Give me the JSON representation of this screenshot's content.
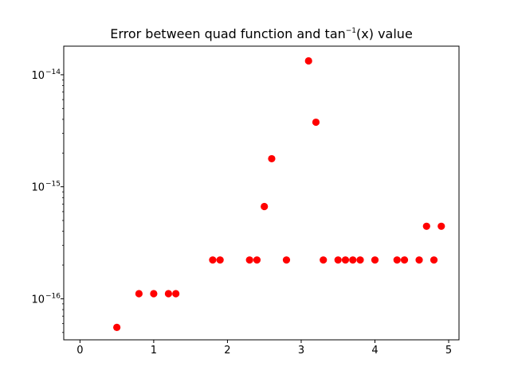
{
  "chart_data": {
    "type": "scatter",
    "title": {
      "main": "Error between quad function and tan",
      "superscript": "−1",
      "suffix": "(x) value"
    },
    "xlabel": "",
    "ylabel": "",
    "xlim": [
      -0.22,
      5.14
    ],
    "ylim": [
      4.3e-17,
      1.8e-14
    ],
    "yscale": "log",
    "grid": false,
    "marker_color": "#ff0000",
    "x_ticks": [
      {
        "value": 0,
        "label": "0"
      },
      {
        "value": 1,
        "label": "1"
      },
      {
        "value": 2,
        "label": "2"
      },
      {
        "value": 3,
        "label": "3"
      },
      {
        "value": 4,
        "label": "4"
      },
      {
        "value": 5,
        "label": "5"
      }
    ],
    "y_ticks": [
      {
        "value": 1e-16,
        "base": "10",
        "exponent": "−16"
      },
      {
        "value": 1e-15,
        "base": "10",
        "exponent": "−15"
      },
      {
        "value": 1e-14,
        "base": "10",
        "exponent": "−14"
      }
    ],
    "points": [
      {
        "x": 0.5,
        "y": 5.55e-17
      },
      {
        "x": 0.8,
        "y": 1.11e-16
      },
      {
        "x": 1.0,
        "y": 1.11e-16
      },
      {
        "x": 1.2,
        "y": 1.11e-16
      },
      {
        "x": 1.3,
        "y": 1.11e-16
      },
      {
        "x": 1.8,
        "y": 2.22e-16
      },
      {
        "x": 1.9,
        "y": 2.22e-16
      },
      {
        "x": 2.3,
        "y": 2.22e-16
      },
      {
        "x": 2.4,
        "y": 2.22e-16
      },
      {
        "x": 2.5,
        "y": 6.66e-16
      },
      {
        "x": 2.6,
        "y": 1.78e-15
      },
      {
        "x": 2.8,
        "y": 2.22e-16
      },
      {
        "x": 3.1,
        "y": 1.33e-14
      },
      {
        "x": 3.2,
        "y": 3.77e-15
      },
      {
        "x": 3.3,
        "y": 2.22e-16
      },
      {
        "x": 3.5,
        "y": 2.22e-16
      },
      {
        "x": 3.6,
        "y": 2.22e-16
      },
      {
        "x": 3.7,
        "y": 2.22e-16
      },
      {
        "x": 3.8,
        "y": 2.22e-16
      },
      {
        "x": 4.0,
        "y": 2.22e-16
      },
      {
        "x": 4.3,
        "y": 2.22e-16
      },
      {
        "x": 4.4,
        "y": 2.22e-16
      },
      {
        "x": 4.6,
        "y": 2.22e-16
      },
      {
        "x": 4.7,
        "y": 4.44e-16
      },
      {
        "x": 4.8,
        "y": 2.22e-16
      },
      {
        "x": 4.9,
        "y": 4.44e-16
      }
    ]
  }
}
